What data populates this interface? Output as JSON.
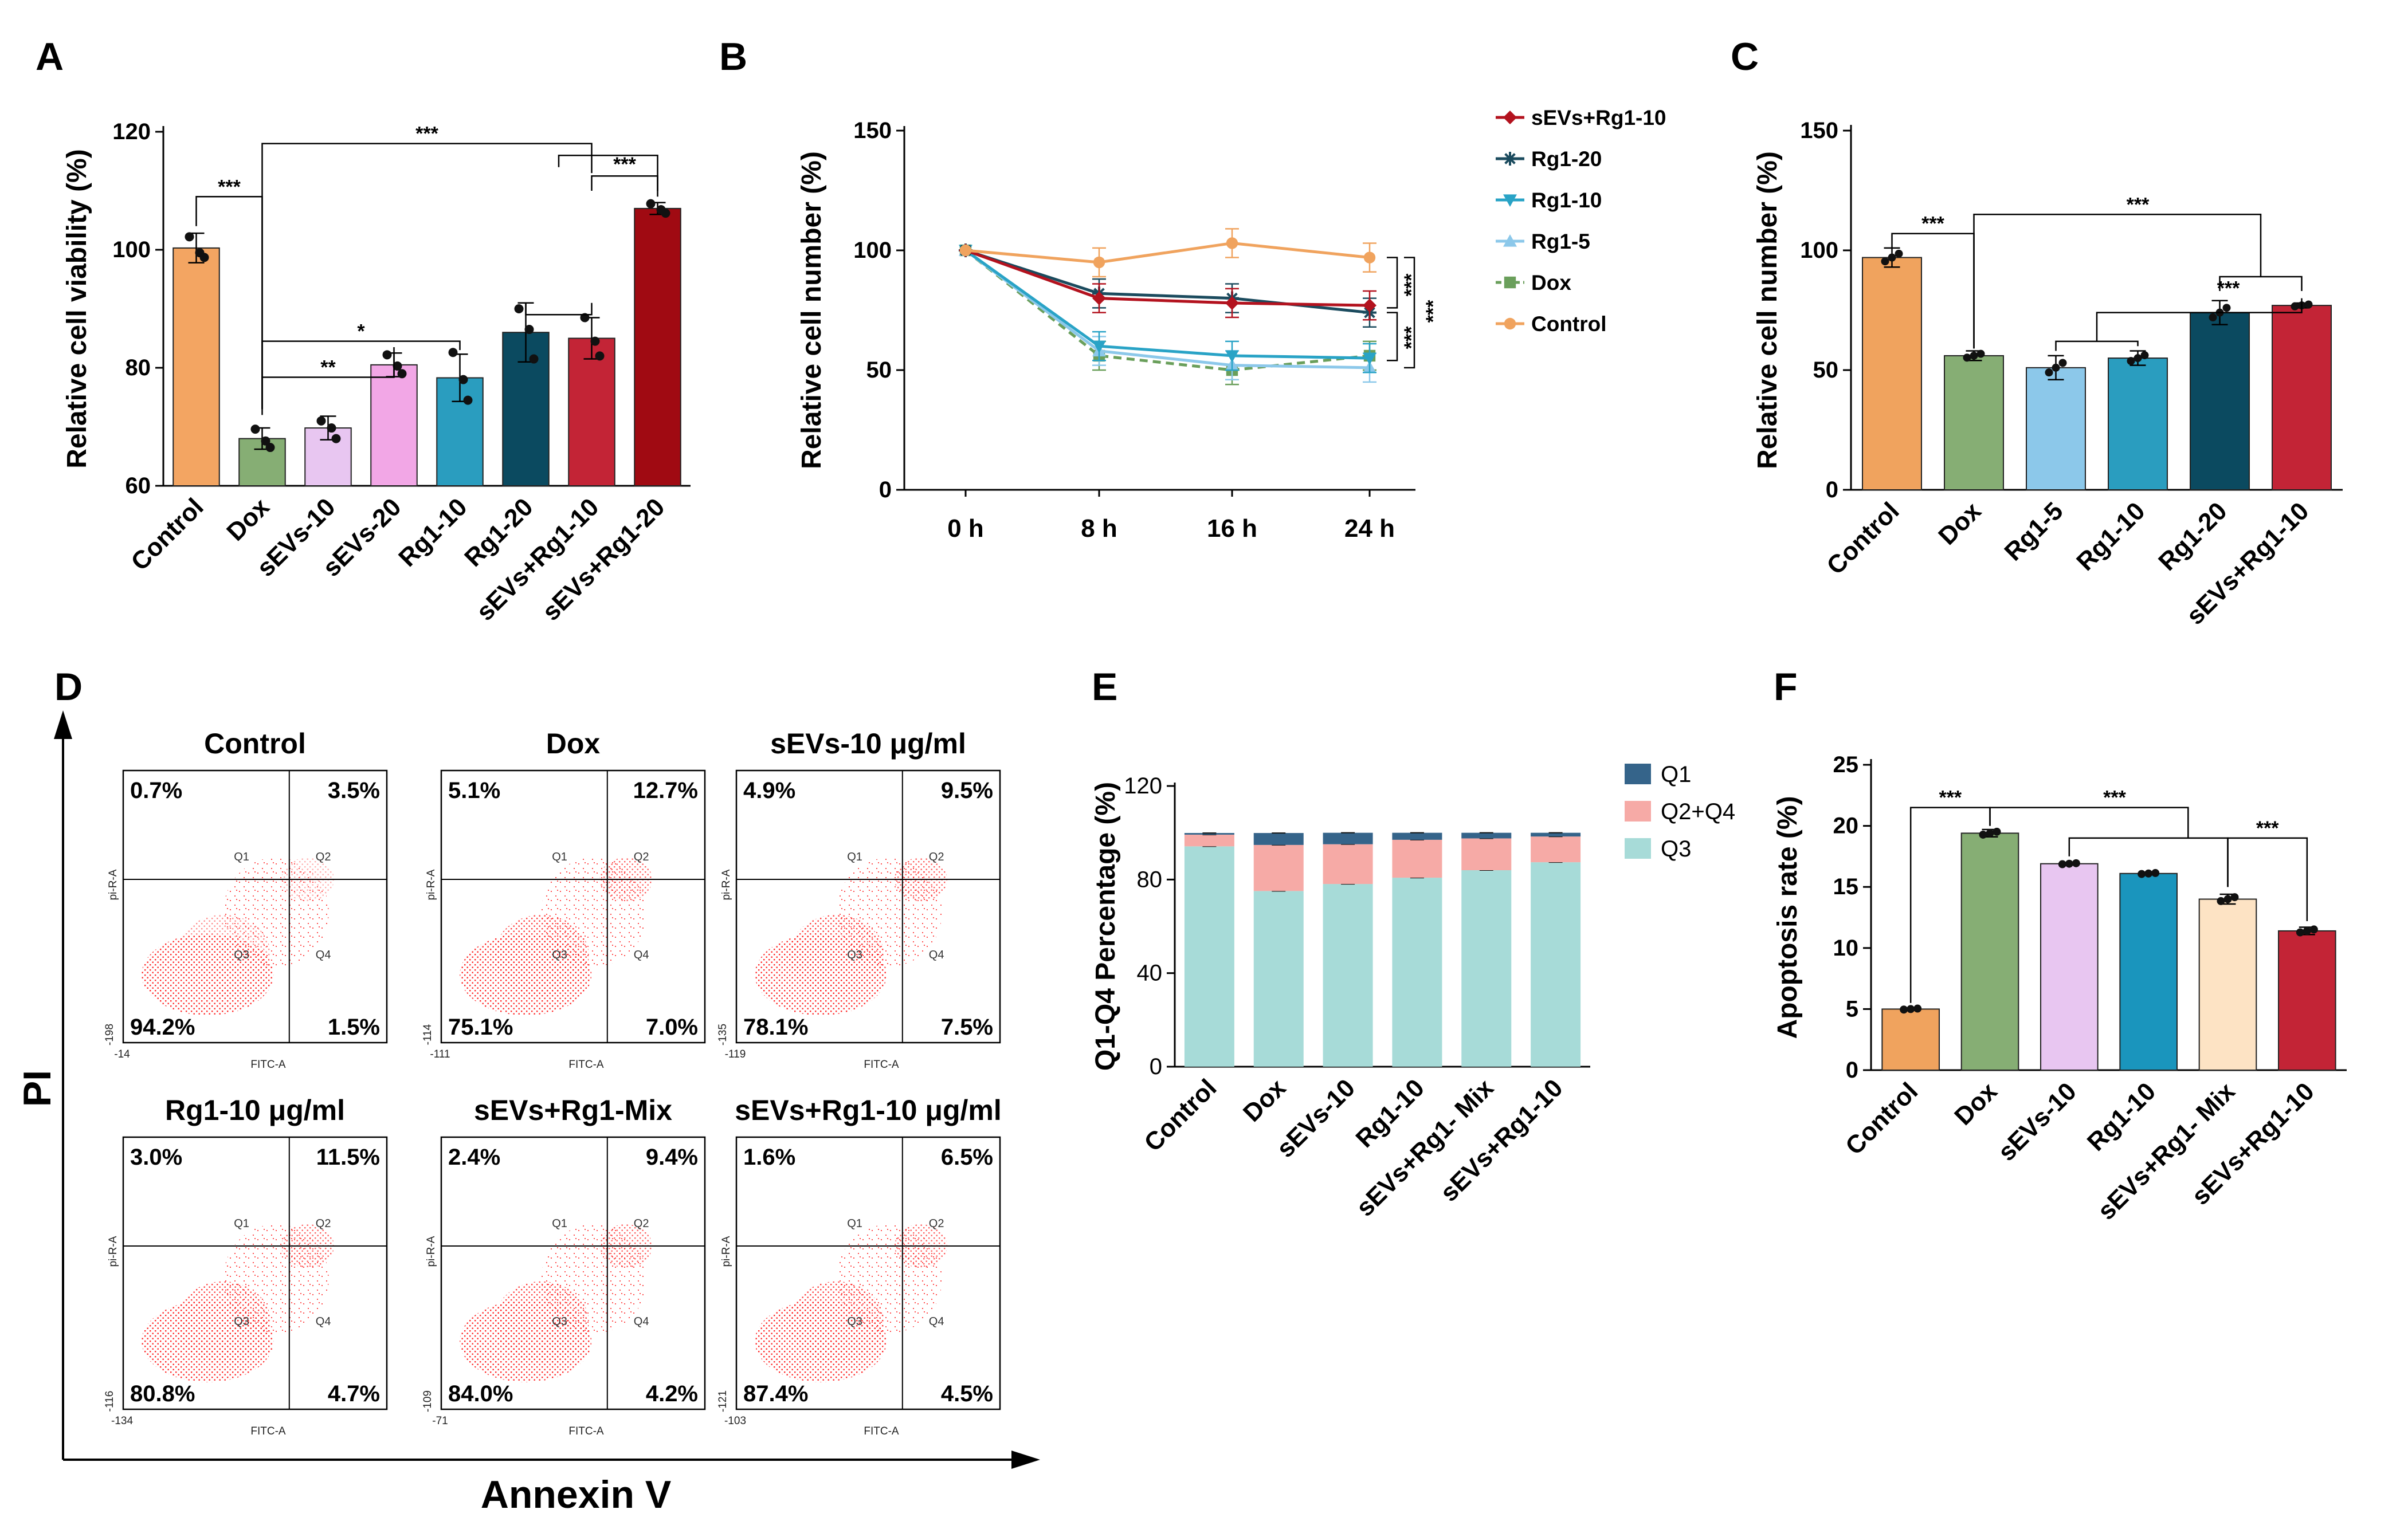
{
  "panel_labels": [
    "A",
    "B",
    "C",
    "D",
    "E",
    "F"
  ],
  "chart_data": [
    {
      "panel": "A",
      "type": "bar",
      "ylabel": "Relative cell viability (%)",
      "ylim": [
        60,
        120
      ],
      "yticks": [
        60,
        80,
        100,
        120
      ],
      "categories": [
        "Control",
        "Dox",
        "sEVs-10",
        "sEVs-20",
        "Rg1-10",
        "Rg1-20",
        "sEVs+Rg1-10",
        "sEVs+Rg1-20"
      ],
      "values": [
        100.3,
        68.0,
        69.8,
        80.5,
        78.3,
        86.0,
        85.0,
        107.0
      ],
      "errors": [
        2.5,
        1.8,
        2.0,
        2.0,
        4.0,
        5.0,
        3.5,
        1.0
      ],
      "points": [
        [
          102.2,
          99.5,
          98.7
        ],
        [
          69.6,
          67.6,
          66.5
        ],
        [
          71.0,
          69.8,
          68.0
        ],
        [
          82.2,
          80.3,
          79.0
        ],
        [
          82.6,
          78.0,
          74.5
        ],
        [
          90.0,
          86.5,
          81.5
        ],
        [
          88.5,
          84.5,
          82.0
        ],
        [
          107.8,
          106.8,
          106.2
        ]
      ],
      "colors": [
        "#f3a562",
        "#86ae74",
        "#e8c6f1",
        "#f2a7e6",
        "#2a9dbf",
        "#0b4a60",
        "#c32436",
        "#a00a12"
      ],
      "significance": [
        {
          "from": "Control",
          "to": "Dox",
          "label": "***"
        },
        {
          "from": "Dox",
          "to": "sEVs-20",
          "label": "**"
        },
        {
          "from": "Dox",
          "to": "Rg1-10",
          "label": "*"
        },
        {
          "from": "Dox",
          "to": "sEVs+Rg1-10",
          "label": "***"
        },
        {
          "from": "sEVs+Rg1-10",
          "to": "sEVs+Rg1-20",
          "label": "***"
        }
      ]
    },
    {
      "panel": "B",
      "type": "line",
      "ylabel": "Relative cell number (%)",
      "ylim": [
        0,
        150
      ],
      "yticks": [
        0,
        50,
        100,
        150
      ],
      "x": [
        "0 h",
        "8 h",
        "16 h",
        "24 h"
      ],
      "series": [
        {
          "name": "sEVs+Rg1-10",
          "values": [
            100,
            80,
            78,
            77
          ],
          "color": "#b3121e",
          "marker": "diamond",
          "dashed": false
        },
        {
          "name": "Rg1-20",
          "values": [
            100,
            82,
            80,
            74
          ],
          "color": "#1b4b5e",
          "marker": "star",
          "dashed": false
        },
        {
          "name": "Rg1-10",
          "values": [
            100,
            60,
            56,
            55
          ],
          "color": "#29a3c6",
          "marker": "tri-down",
          "dashed": false
        },
        {
          "name": "Rg1-5",
          "values": [
            100,
            58,
            52,
            51
          ],
          "color": "#8cc8ea",
          "marker": "tri-up",
          "dashed": false
        },
        {
          "name": "Dox",
          "values": [
            100,
            56,
            50,
            56
          ],
          "color": "#6a9f5b",
          "marker": "square",
          "dashed": true
        },
        {
          "name": "Control",
          "values": [
            100,
            95,
            103,
            97
          ],
          "color": "#f0a35e",
          "marker": "circle",
          "dashed": false
        }
      ],
      "errors_note": "approx ±5",
      "significance": [
        "***",
        "***",
        "***"
      ]
    },
    {
      "panel": "C",
      "type": "bar",
      "ylabel": "Relative cell number (%)",
      "ylim": [
        0,
        150
      ],
      "yticks": [
        0,
        50,
        100,
        150
      ],
      "categories": [
        "Control",
        "Dox",
        "Rg1-5",
        "Rg1-10",
        "Rg1-20",
        "sEVs+Rg1-10"
      ],
      "values": [
        97,
        56,
        51,
        55,
        74,
        77
      ],
      "errors": [
        4,
        2,
        5,
        3,
        5,
        1
      ],
      "colors": [
        "#f0a35e",
        "#86ae74",
        "#8cc8ea",
        "#2a9dbf",
        "#0b4a60",
        "#c32436"
      ],
      "significance": [
        {
          "label": "***",
          "desc": "Control vs Dox"
        },
        {
          "label": "***",
          "desc": "Dox vs Rg1-20/sEVs+Rg1-10"
        },
        {
          "label": "***",
          "desc": "Rg1-5/Rg1-10 vs Rg1-20/sEVs+Rg1-10"
        }
      ]
    },
    {
      "panel": "D",
      "type": "scatter",
      "xlabel": "Annexin V",
      "ylabel": "PI",
      "axis_x_title": "FITC-A",
      "axis_y_title": "pi-R-A",
      "quadrant_names": [
        "Q1",
        "Q2",
        "Q3",
        "Q4"
      ],
      "subplots": [
        {
          "title": "Control",
          "q1": "0.7%",
          "q2": "3.5%",
          "q3": "94.2%",
          "q4": "1.5%",
          "xmin": "-14",
          "ymin": "-198"
        },
        {
          "title": "Dox",
          "q1": "5.1%",
          "q2": "12.7%",
          "q3": "75.1%",
          "q4": "7.0%",
          "xmin": "-111",
          "ymin": "-114"
        },
        {
          "title": "sEVs-10 μg/ml",
          "q1": "4.9%",
          "q2": "9.5%",
          "q3": "78.1%",
          "q4": "7.5%",
          "xmin": "-119",
          "ymin": "-135"
        },
        {
          "title": "Rg1-10 μg/ml",
          "q1": "3.0%",
          "q2": "11.5%",
          "q3": "80.8%",
          "q4": "4.7%",
          "xmin": "-134",
          "ymin": "-116"
        },
        {
          "title": "sEVs+Rg1-Mix",
          "q1": "2.4%",
          "q2": "9.4%",
          "q3": "84.0%",
          "q4": "4.2%",
          "xmin": "-71",
          "ymin": "-109"
        },
        {
          "title": "sEVs+Rg1-10 μg/ml",
          "q1": "1.6%",
          "q2": "6.5%",
          "q3": "87.4%",
          "q4": "4.5%",
          "xmin": "-103",
          "ymin": "-121"
        }
      ]
    },
    {
      "panel": "E",
      "type": "bar",
      "stacked": true,
      "ylabel": "Q1-Q4 Percentage (%)",
      "ylim": [
        0,
        120
      ],
      "yticks": [
        0,
        40,
        80,
        120
      ],
      "categories": [
        "Control",
        "Dox",
        "sEVs-10",
        "Rg1-10",
        "sEVs+Rg1- Mix",
        "sEVs+Rg1-10"
      ],
      "series": [
        {
          "name": "Q3",
          "values": [
            94.2,
            75.1,
            78.1,
            80.8,
            84.0,
            87.4
          ],
          "color": "#a7dbd8"
        },
        {
          "name": "Q2+Q4",
          "values": [
            5.0,
            19.7,
            17.0,
            16.2,
            13.6,
            11.0
          ],
          "color": "#f6aaa6"
        },
        {
          "name": "Q1",
          "values": [
            0.7,
            5.1,
            4.9,
            3.0,
            2.4,
            1.6
          ],
          "color": "#35648a"
        }
      ]
    },
    {
      "panel": "F",
      "type": "bar",
      "ylabel": "Apoptosis rate (%)",
      "ylim": [
        0,
        25
      ],
      "yticks": [
        0,
        5,
        10,
        15,
        20,
        25
      ],
      "categories": [
        "Control",
        "Dox",
        "sEVs-10",
        "Rg1-10",
        "sEVs+Rg1- Mix",
        "sEVs+Rg1-10"
      ],
      "values": [
        5.0,
        19.4,
        16.9,
        16.1,
        14.0,
        11.4
      ],
      "errors": [
        0.1,
        0.3,
        0.1,
        0.1,
        0.4,
        0.3
      ],
      "colors": [
        "#f0a35e",
        "#86ae74",
        "#e8c6f1",
        "#1a95bd",
        "#fde3c4",
        "#c32436"
      ],
      "significance": [
        {
          "label": "***",
          "desc": "Control vs Dox"
        },
        {
          "label": "***",
          "desc": "Dox vs Rg1-10/sEVs+Rg1- Mix"
        },
        {
          "label": "***",
          "desc": "sEVs+Rg1- Mix vs sEVs+Rg1-10"
        }
      ]
    }
  ]
}
